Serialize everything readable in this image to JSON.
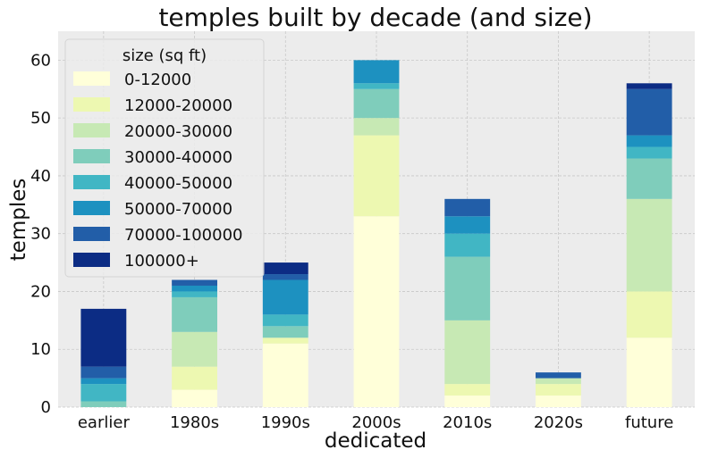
{
  "chart_data": {
    "type": "bar",
    "stacked": true,
    "title": "temples built by decade (and size)",
    "xlabel": "dedicated",
    "ylabel": "temples",
    "ylim": [
      0,
      65
    ],
    "yticks": [
      0,
      10,
      20,
      30,
      40,
      50,
      60
    ],
    "grid": true,
    "legend": {
      "title": "size (sq ft)",
      "placement": "top-left"
    },
    "categories": [
      "earlier",
      "1980s",
      "1990s",
      "2000s",
      "2010s",
      "2020s",
      "future"
    ],
    "series": [
      {
        "name": "0-12000",
        "color": "#ffffd9",
        "values": [
          0,
          3,
          11,
          33,
          2,
          2,
          12
        ]
      },
      {
        "name": "12000-20000",
        "color": "#edf8b1",
        "values": [
          0,
          4,
          1,
          14,
          2,
          2,
          8
        ]
      },
      {
        "name": "20000-30000",
        "color": "#c7e9b4",
        "values": [
          0,
          6,
          0,
          3,
          11,
          1,
          16
        ]
      },
      {
        "name": "30000-40000",
        "color": "#7fcdbb",
        "values": [
          1,
          6,
          2,
          5,
          11,
          0,
          7
        ]
      },
      {
        "name": "40000-50000",
        "color": "#41b6c4",
        "values": [
          3,
          1,
          2,
          1,
          4,
          0,
          2
        ]
      },
      {
        "name": "50000-70000",
        "color": "#1d91c0",
        "values": [
          1,
          1,
          6,
          4,
          3,
          0,
          2
        ]
      },
      {
        "name": "70000-100000",
        "color": "#225ea8",
        "values": [
          2,
          1,
          1,
          0,
          3,
          1,
          8
        ]
      },
      {
        "name": "100000+",
        "color": "#0c2c84",
        "values": [
          10,
          0,
          2,
          0,
          0,
          0,
          1
        ]
      }
    ]
  }
}
